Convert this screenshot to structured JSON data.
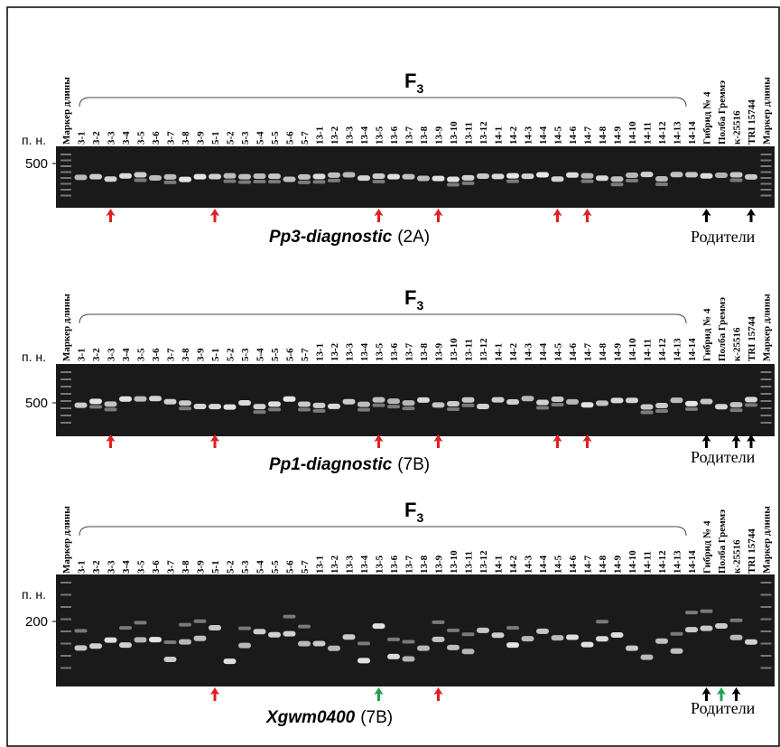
{
  "lane_labels": [
    "Маркер длины",
    "3-1",
    "3-2",
    "3-3",
    "3-4",
    "3-5",
    "3-6",
    "3-7",
    "3-8",
    "3-9",
    "5-1",
    "5-2",
    "5-3",
    "5-4",
    "5-5",
    "5-6",
    "5-7",
    "13-1",
    "13-2",
    "13-3",
    "13-4",
    "13-5",
    "13-6",
    "13-7",
    "13-8",
    "13-9",
    "13-10",
    "13-11",
    "13-12",
    "14-1",
    "14-2",
    "14-3",
    "14-4",
    "14-5",
    "14-6",
    "14-7",
    "14-8",
    "14-9",
    "14-10",
    "14-11",
    "14-12",
    "14-13",
    "14-14",
    "Гибрид № 4",
    "Полба Греммэ",
    "к-25516",
    "TRI 15744",
    "Маркер длины"
  ],
  "panels": [
    {
      "f_label": "F",
      "f_subscript": "3",
      "size_unit": "п. н.",
      "size_marker": "500",
      "gene": "Pp3-diagnostic",
      "chromosome": "(2A)",
      "parents_label": "Родители"
    },
    {
      "f_label": "F",
      "f_subscript": "3",
      "size_unit": "п. н.",
      "size_marker": "500",
      "gene": "Pp1-diagnostic",
      "chromosome": "(7B)",
      "parents_label": "Родители"
    },
    {
      "f_label": "F",
      "f_subscript": "3",
      "size_unit": "п. н.",
      "size_marker": "200",
      "gene": "Xgwm0400",
      "chromosome": "(7B)",
      "parents_label": "Родители"
    }
  ]
}
